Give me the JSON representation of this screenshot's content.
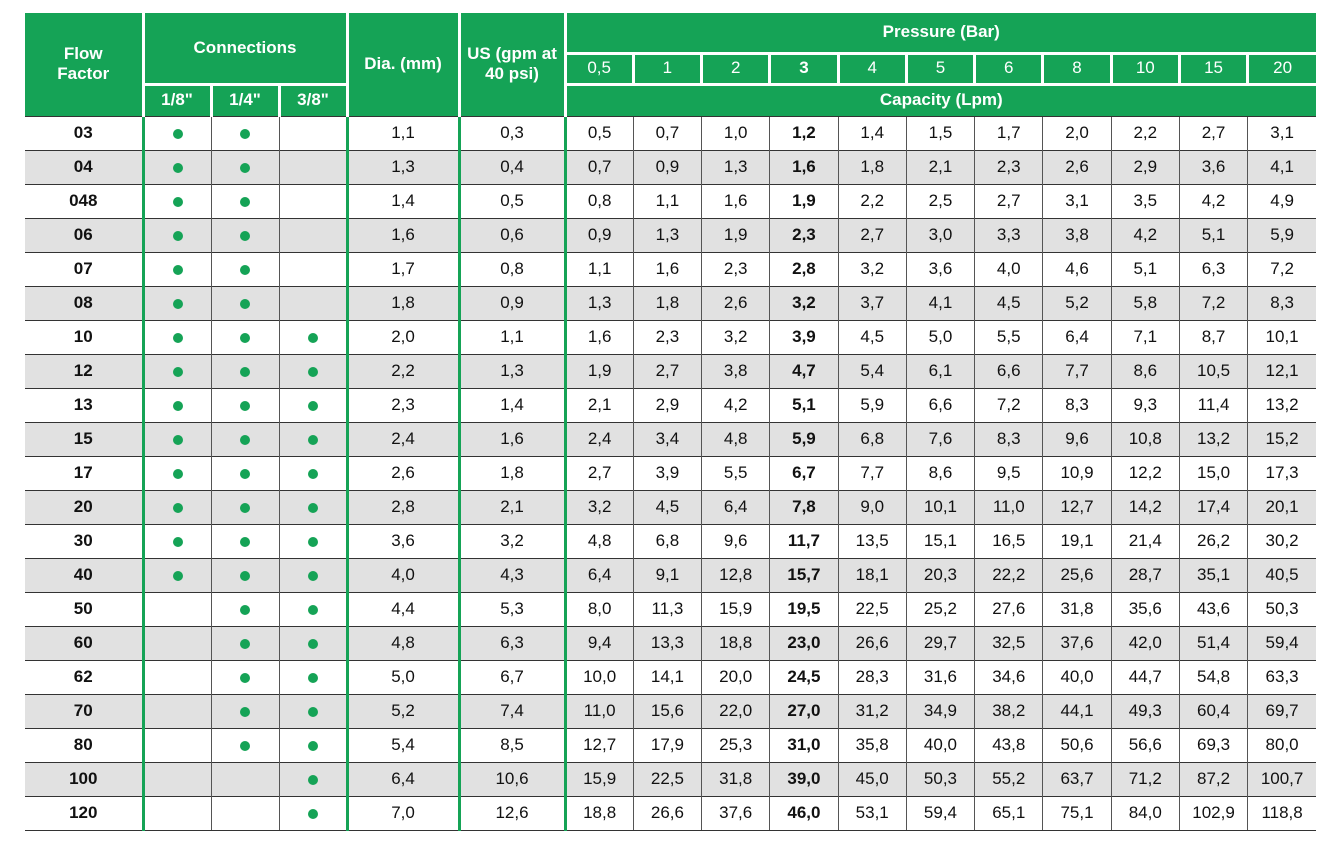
{
  "colors": {
    "accent_green": "#15a356",
    "stripe_gray": "#e1e1e1",
    "grid_dark": "#333333",
    "grid_mid": "#555555",
    "text_dark": "#111111",
    "header_text": "#ffffff"
  },
  "header": {
    "flow_factor": "Flow Factor",
    "connections": "Connections",
    "connection_sizes": [
      "1/8\"",
      "1/4\"",
      "3/8\""
    ],
    "dia": "Dia. (mm)",
    "us_gpm": "US (gpm at 40 psi)",
    "pressure": "Pressure (Bar)",
    "pressure_values": [
      "0,5",
      "1",
      "2",
      "3",
      "4",
      "5",
      "6",
      "8",
      "10",
      "15",
      "20"
    ],
    "bold_pressure_index": 3,
    "capacity": "Capacity (Lpm)"
  },
  "rows": [
    {
      "flow_factor": "03",
      "connections": [
        1,
        1,
        0
      ],
      "dia": "1,1",
      "us_gpm": "0,3",
      "capacity": [
        "0,5",
        "0,7",
        "1,0",
        "1,2",
        "1,4",
        "1,5",
        "1,7",
        "2,0",
        "2,2",
        "2,7",
        "3,1"
      ]
    },
    {
      "flow_factor": "04",
      "connections": [
        1,
        1,
        0
      ],
      "dia": "1,3",
      "us_gpm": "0,4",
      "capacity": [
        "0,7",
        "0,9",
        "1,3",
        "1,6",
        "1,8",
        "2,1",
        "2,3",
        "2,6",
        "2,9",
        "3,6",
        "4,1"
      ]
    },
    {
      "flow_factor": "048",
      "connections": [
        1,
        1,
        0
      ],
      "dia": "1,4",
      "us_gpm": "0,5",
      "capacity": [
        "0,8",
        "1,1",
        "1,6",
        "1,9",
        "2,2",
        "2,5",
        "2,7",
        "3,1",
        "3,5",
        "4,2",
        "4,9"
      ]
    },
    {
      "flow_factor": "06",
      "connections": [
        1,
        1,
        0
      ],
      "dia": "1,6",
      "us_gpm": "0,6",
      "capacity": [
        "0,9",
        "1,3",
        "1,9",
        "2,3",
        "2,7",
        "3,0",
        "3,3",
        "3,8",
        "4,2",
        "5,1",
        "5,9"
      ]
    },
    {
      "flow_factor": "07",
      "connections": [
        1,
        1,
        0
      ],
      "dia": "1,7",
      "us_gpm": "0,8",
      "capacity": [
        "1,1",
        "1,6",
        "2,3",
        "2,8",
        "3,2",
        "3,6",
        "4,0",
        "4,6",
        "5,1",
        "6,3",
        "7,2"
      ]
    },
    {
      "flow_factor": "08",
      "connections": [
        1,
        1,
        0
      ],
      "dia": "1,8",
      "us_gpm": "0,9",
      "capacity": [
        "1,3",
        "1,8",
        "2,6",
        "3,2",
        "3,7",
        "4,1",
        "4,5",
        "5,2",
        "5,8",
        "7,2",
        "8,3"
      ]
    },
    {
      "flow_factor": "10",
      "connections": [
        1,
        1,
        1
      ],
      "dia": "2,0",
      "us_gpm": "1,1",
      "capacity": [
        "1,6",
        "2,3",
        "3,2",
        "3,9",
        "4,5",
        "5,0",
        "5,5",
        "6,4",
        "7,1",
        "8,7",
        "10,1"
      ]
    },
    {
      "flow_factor": "12",
      "connections": [
        1,
        1,
        1
      ],
      "dia": "2,2",
      "us_gpm": "1,3",
      "capacity": [
        "1,9",
        "2,7",
        "3,8",
        "4,7",
        "5,4",
        "6,1",
        "6,6",
        "7,7",
        "8,6",
        "10,5",
        "12,1"
      ]
    },
    {
      "flow_factor": "13",
      "connections": [
        1,
        1,
        1
      ],
      "dia": "2,3",
      "us_gpm": "1,4",
      "capacity": [
        "2,1",
        "2,9",
        "4,2",
        "5,1",
        "5,9",
        "6,6",
        "7,2",
        "8,3",
        "9,3",
        "11,4",
        "13,2"
      ]
    },
    {
      "flow_factor": "15",
      "connections": [
        1,
        1,
        1
      ],
      "dia": "2,4",
      "us_gpm": "1,6",
      "capacity": [
        "2,4",
        "3,4",
        "4,8",
        "5,9",
        "6,8",
        "7,6",
        "8,3",
        "9,6",
        "10,8",
        "13,2",
        "15,2"
      ]
    },
    {
      "flow_factor": "17",
      "connections": [
        1,
        1,
        1
      ],
      "dia": "2,6",
      "us_gpm": "1,8",
      "capacity": [
        "2,7",
        "3,9",
        "5,5",
        "6,7",
        "7,7",
        "8,6",
        "9,5",
        "10,9",
        "12,2",
        "15,0",
        "17,3"
      ]
    },
    {
      "flow_factor": "20",
      "connections": [
        1,
        1,
        1
      ],
      "dia": "2,8",
      "us_gpm": "2,1",
      "capacity": [
        "3,2",
        "4,5",
        "6,4",
        "7,8",
        "9,0",
        "10,1",
        "11,0",
        "12,7",
        "14,2",
        "17,4",
        "20,1"
      ]
    },
    {
      "flow_factor": "30",
      "connections": [
        1,
        1,
        1
      ],
      "dia": "3,6",
      "us_gpm": "3,2",
      "capacity": [
        "4,8",
        "6,8",
        "9,6",
        "11,7",
        "13,5",
        "15,1",
        "16,5",
        "19,1",
        "21,4",
        "26,2",
        "30,2"
      ]
    },
    {
      "flow_factor": "40",
      "connections": [
        1,
        1,
        1
      ],
      "dia": "4,0",
      "us_gpm": "4,3",
      "capacity": [
        "6,4",
        "9,1",
        "12,8",
        "15,7",
        "18,1",
        "20,3",
        "22,2",
        "25,6",
        "28,7",
        "35,1",
        "40,5"
      ]
    },
    {
      "flow_factor": "50",
      "connections": [
        0,
        1,
        1
      ],
      "dia": "4,4",
      "us_gpm": "5,3",
      "capacity": [
        "8,0",
        "11,3",
        "15,9",
        "19,5",
        "22,5",
        "25,2",
        "27,6",
        "31,8",
        "35,6",
        "43,6",
        "50,3"
      ]
    },
    {
      "flow_factor": "60",
      "connections": [
        0,
        1,
        1
      ],
      "dia": "4,8",
      "us_gpm": "6,3",
      "capacity": [
        "9,4",
        "13,3",
        "18,8",
        "23,0",
        "26,6",
        "29,7",
        "32,5",
        "37,6",
        "42,0",
        "51,4",
        "59,4"
      ]
    },
    {
      "flow_factor": "62",
      "connections": [
        0,
        1,
        1
      ],
      "dia": "5,0",
      "us_gpm": "6,7",
      "capacity": [
        "10,0",
        "14,1",
        "20,0",
        "24,5",
        "28,3",
        "31,6",
        "34,6",
        "40,0",
        "44,7",
        "54,8",
        "63,3"
      ]
    },
    {
      "flow_factor": "70",
      "connections": [
        0,
        1,
        1
      ],
      "dia": "5,2",
      "us_gpm": "7,4",
      "capacity": [
        "11,0",
        "15,6",
        "22,0",
        "27,0",
        "31,2",
        "34,9",
        "38,2",
        "44,1",
        "49,3",
        "60,4",
        "69,7"
      ]
    },
    {
      "flow_factor": "80",
      "connections": [
        0,
        1,
        1
      ],
      "dia": "5,4",
      "us_gpm": "8,5",
      "capacity": [
        "12,7",
        "17,9",
        "25,3",
        "31,0",
        "35,8",
        "40,0",
        "43,8",
        "50,6",
        "56,6",
        "69,3",
        "80,0"
      ]
    },
    {
      "flow_factor": "100",
      "connections": [
        0,
        0,
        1
      ],
      "dia": "6,4",
      "us_gpm": "10,6",
      "capacity": [
        "15,9",
        "22,5",
        "31,8",
        "39,0",
        "45,0",
        "50,3",
        "55,2",
        "63,7",
        "71,2",
        "87,2",
        "100,7"
      ]
    },
    {
      "flow_factor": "120",
      "connections": [
        0,
        0,
        1
      ],
      "dia": "7,0",
      "us_gpm": "12,6",
      "capacity": [
        "18,8",
        "26,6",
        "37,6",
        "46,0",
        "53,1",
        "59,4",
        "65,1",
        "75,1",
        "84,0",
        "102,9",
        "118,8"
      ]
    }
  ]
}
